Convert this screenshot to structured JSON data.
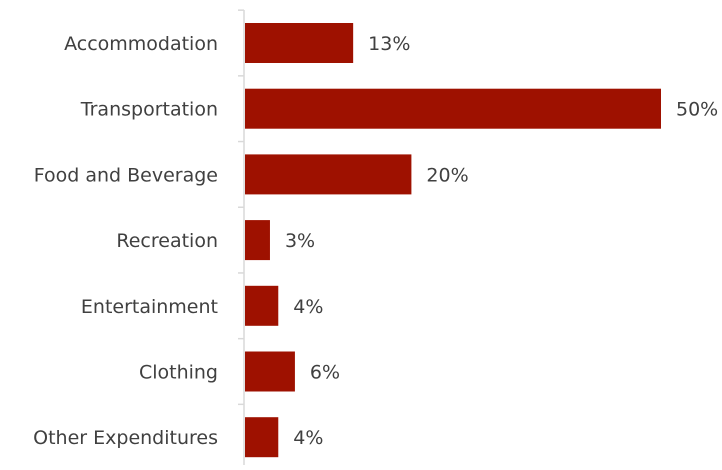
{
  "chart_data": {
    "type": "bar",
    "orientation": "horizontal",
    "categories": [
      "Accommodation",
      "Transportation",
      "Food and Beverage",
      "Recreation",
      "Entertainment",
      "Clothing",
      "Other Expenditures"
    ],
    "values": [
      13,
      50,
      20,
      3,
      4,
      6,
      4
    ],
    "value_labels": [
      "13%",
      "50%",
      "20%",
      "3%",
      "4%",
      "6%",
      "4%"
    ],
    "unit": "%",
    "xlim": [
      0,
      50
    ],
    "grid": false,
    "legend": "none",
    "bar_color": "#9e1100",
    "axis_color": "#d9d9d9",
    "text_color": "#404040"
  }
}
